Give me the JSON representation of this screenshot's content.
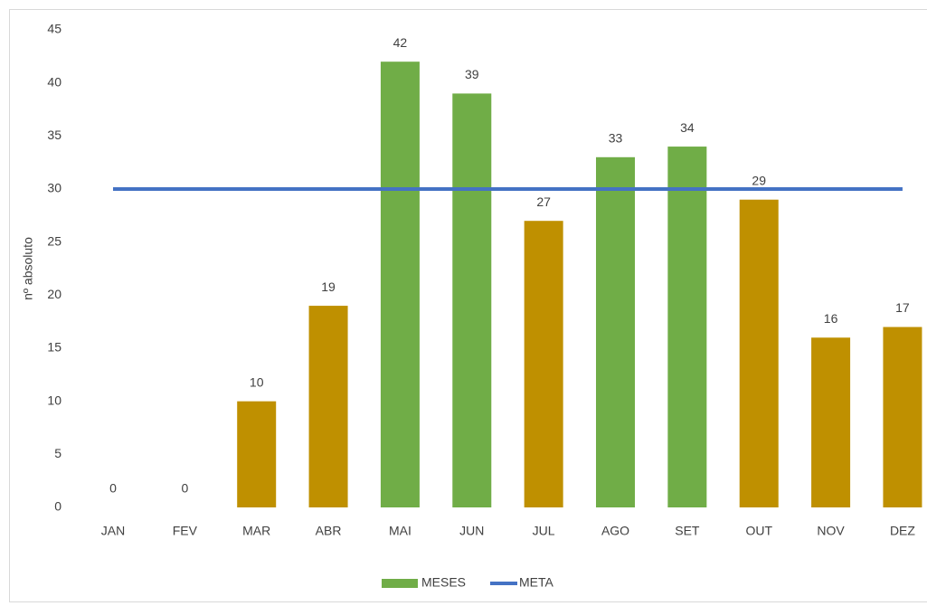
{
  "chart_data": {
    "type": "bar",
    "y_label": "nº absoluto",
    "categories": [
      "JAN",
      "FEV",
      "MAR",
      "ABR",
      "MAI",
      "JUN",
      "JUL",
      "AGO",
      "SET",
      "OUT",
      "NOV",
      "DEZ"
    ],
    "series": [
      {
        "name": "MESES",
        "color": "#70ad47",
        "colors": [
          "#bf9000",
          "#bf9000",
          "#bf9000",
          "#bf9000",
          "#70ad47",
          "#70ad47",
          "#bf9000",
          "#70ad47",
          "#70ad47",
          "#bf9000",
          "#bf9000",
          "#bf9000"
        ],
        "values": [
          0,
          0,
          10,
          19,
          42,
          39,
          27,
          33,
          34,
          29,
          16,
          17
        ]
      },
      {
        "name": "META",
        "type": "line",
        "color": "#4472c4",
        "values": [
          30,
          30,
          30,
          30,
          30,
          30,
          30,
          30,
          30,
          30,
          30,
          30
        ]
      }
    ],
    "ylim": [
      0,
      45
    ],
    "yticks": [
      0,
      5,
      10,
      15,
      20,
      25,
      30,
      35,
      40,
      45
    ],
    "grid": false,
    "legend": "bottom"
  }
}
